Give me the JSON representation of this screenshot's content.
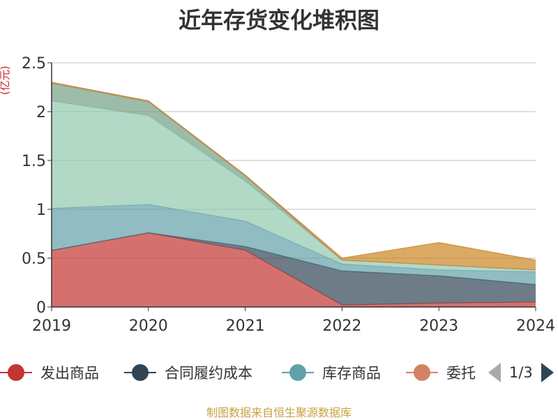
{
  "colors": {
    "发出商品": "#c23531",
    "合同履约成本": "#2f4554",
    "库存商品": "#61a0a8",
    "委托": "#d48265",
    "series5": "#91c7ae",
    "series6": "#749f83",
    "series7": "#ca8622",
    "text": "#333333",
    "unit": "#cc2222",
    "footer": "#c8a040"
  },
  "legend": {
    "items": [
      "发出商品",
      "合同履约成本",
      "库存商品",
      "委托"
    ],
    "page": "1/3"
  },
  "footer": "制图数据来自恒生聚源数据库",
  "chart_data": {
    "type": "area",
    "stacked": true,
    "title": "近年存货变化堆积图",
    "unit": "(亿元)",
    "x": [
      "2019",
      "2020",
      "2021",
      "2022",
      "2023",
      "2024"
    ],
    "ylim": [
      0,
      2.5
    ],
    "yticks": [
      "0",
      "0.5",
      "1",
      "1.5",
      "2",
      "2.5"
    ],
    "grid": true,
    "legend_position": "bottom",
    "series": [
      {
        "name": "发出商品",
        "colorKey": "发出商品",
        "values": [
          0.58,
          0.76,
          0.58,
          0.02,
          0.04,
          0.05
        ]
      },
      {
        "name": "合同履约成本",
        "colorKey": "合同履约成本",
        "values": [
          0.0,
          0.0,
          0.04,
          0.35,
          0.28,
          0.18
        ]
      },
      {
        "name": "库存商品",
        "colorKey": "库存商品",
        "values": [
          0.43,
          0.29,
          0.26,
          0.07,
          0.06,
          0.13
        ]
      },
      {
        "colorKey": "series5",
        "values": [
          1.1,
          0.91,
          0.41,
          0.04,
          0.05,
          0.02
        ]
      },
      {
        "colorKey": "series6",
        "values": [
          0.18,
          0.14,
          0.05,
          0.0,
          0.0,
          0.0
        ]
      },
      {
        "name": "委托",
        "colorKey": "委托",
        "values": [
          0.01,
          0.01,
          0.01,
          0.0,
          0.0,
          0.0
        ]
      },
      {
        "colorKey": "series7",
        "values": [
          0.0,
          0.0,
          0.0,
          0.02,
          0.23,
          0.1
        ]
      }
    ]
  }
}
